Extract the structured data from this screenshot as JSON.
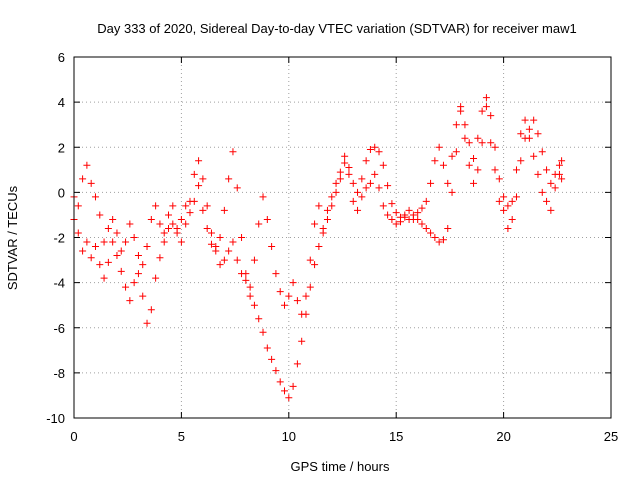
{
  "chart_data": {
    "type": "scatter",
    "title": "Day 333 of 2020, Sidereal Day-to-day VTEC variation (SDTVAR) for receiver maw1",
    "xlabel": "GPS time / hours",
    "ylabel": "SDTVAR / TECUs",
    "xlim": [
      0,
      25
    ],
    "ylim": [
      -10,
      6
    ],
    "xticks": [
      0,
      5,
      10,
      15,
      20,
      25
    ],
    "yticks": [
      -10,
      -8,
      -6,
      -4,
      -2,
      0,
      2,
      4,
      6
    ],
    "grid": true,
    "marker": "+",
    "color": "#ff0000",
    "series": [
      {
        "name": "SDTVAR",
        "tracks": [
          [
            [
              0.0,
              -0.2
            ],
            [
              0.2,
              -1.8
            ],
            [
              0.4,
              -2.6
            ],
            [
              0.6,
              -2.2
            ],
            [
              0.8,
              -2.9
            ],
            [
              1.0,
              -2.4
            ],
            [
              1.2,
              -3.2
            ],
            [
              1.4,
              -3.8
            ],
            [
              1.6,
              -3.1
            ],
            [
              1.8,
              -2.2
            ],
            [
              2.0,
              -2.8
            ],
            [
              2.2,
              -3.5
            ],
            [
              2.4,
              -4.2
            ],
            [
              2.6,
              -4.8
            ],
            [
              2.8,
              -4.0
            ],
            [
              3.0,
              -3.6
            ],
            [
              3.2,
              -4.6
            ],
            [
              3.4,
              -5.8
            ],
            [
              3.6,
              -5.2
            ],
            [
              3.8,
              -3.8
            ],
            [
              4.0,
              -2.9
            ],
            [
              4.2,
              -1.8
            ],
            [
              4.4,
              -1.0
            ],
            [
              4.6,
              -1.4
            ],
            [
              4.8,
              -1.6
            ],
            [
              5.0,
              -1.2
            ],
            [
              5.2,
              -0.6
            ],
            [
              5.4,
              -0.9
            ],
            [
              5.6,
              -0.4
            ],
            [
              5.8,
              0.3
            ],
            [
              6.0,
              -0.8
            ],
            [
              6.2,
              -1.6
            ],
            [
              6.4,
              -2.3
            ],
            [
              6.6,
              -2.6
            ],
            [
              6.8,
              -3.2
            ],
            [
              7.0,
              -3.0
            ],
            [
              7.2,
              -2.6
            ],
            [
              7.4,
              -2.2
            ],
            [
              7.6,
              -3.0
            ],
            [
              7.8,
              -3.6
            ],
            [
              8.0,
              -3.9
            ],
            [
              8.2,
              -4.6
            ],
            [
              8.4,
              -5.0
            ],
            [
              8.6,
              -5.6
            ],
            [
              8.8,
              -6.2
            ],
            [
              9.0,
              -6.9
            ],
            [
              9.2,
              -7.4
            ],
            [
              9.4,
              -7.9
            ],
            [
              9.6,
              -8.4
            ],
            [
              9.8,
              -8.8
            ],
            [
              10.0,
              -9.1
            ],
            [
              10.2,
              -8.6
            ],
            [
              10.4,
              -7.6
            ],
            [
              10.6,
              -6.6
            ],
            [
              10.8,
              -5.4
            ],
            [
              11.0,
              -4.2
            ],
            [
              11.2,
              -3.2
            ],
            [
              11.4,
              -2.4
            ],
            [
              11.6,
              -1.6
            ],
            [
              11.8,
              -0.8
            ],
            [
              12.0,
              -0.2
            ],
            [
              12.2,
              0.4
            ],
            [
              12.4,
              0.9
            ],
            [
              12.6,
              1.3
            ],
            [
              12.8,
              1.1
            ],
            [
              13.0,
              0.4
            ],
            [
              13.2,
              0.0
            ],
            [
              13.4,
              0.6
            ],
            [
              13.6,
              1.4
            ],
            [
              13.8,
              1.9
            ],
            [
              14.0,
              2.0
            ],
            [
              14.2,
              1.8
            ],
            [
              14.4,
              1.2
            ],
            [
              14.6,
              0.3
            ],
            [
              14.8,
              -0.5
            ],
            [
              15.0,
              -0.9
            ],
            [
              15.2,
              -1.1
            ],
            [
              15.4,
              -1.0
            ],
            [
              15.6,
              -1.2
            ],
            [
              15.8,
              -1.0
            ],
            [
              16.0,
              -1.2
            ],
            [
              16.2,
              -1.4
            ],
            [
              16.4,
              -1.6
            ],
            [
              16.6,
              -1.8
            ],
            [
              16.8,
              -2.0
            ],
            [
              17.0,
              -2.2
            ],
            [
              17.2,
              -2.1
            ],
            [
              17.4,
              -1.6
            ],
            [
              17.6,
              0.0
            ],
            [
              17.8,
              1.8
            ],
            [
              18.0,
              3.6
            ],
            [
              18.2,
              3.0
            ],
            [
              18.4,
              2.2
            ],
            [
              18.6,
              1.5
            ],
            [
              18.8,
              2.4
            ],
            [
              19.0,
              3.6
            ],
            [
              19.2,
              4.2
            ],
            [
              19.4,
              3.4
            ],
            [
              19.6,
              2.0
            ],
            [
              19.8,
              0.6
            ],
            [
              20.0,
              -0.2
            ],
            [
              20.2,
              -0.6
            ],
            [
              20.4,
              -1.2
            ],
            [
              20.6,
              -0.2
            ],
            [
              20.8,
              1.4
            ],
            [
              21.0,
              2.4
            ],
            [
              21.2,
              2.8
            ],
            [
              21.4,
              3.2
            ],
            [
              21.6,
              2.6
            ],
            [
              21.8,
              1.8
            ],
            [
              22.0,
              1.0
            ],
            [
              22.2,
              0.4
            ],
            [
              22.4,
              0.8
            ],
            [
              22.6,
              1.2
            ],
            [
              22.7,
              0.6
            ]
          ],
          [
            [
              0.0,
              -1.2
            ],
            [
              0.2,
              -0.6
            ],
            [
              0.4,
              0.6
            ],
            [
              0.6,
              1.2
            ],
            [
              0.8,
              0.4
            ],
            [
              1.0,
              -0.2
            ],
            [
              1.2,
              -1.0
            ],
            [
              1.4,
              -2.2
            ],
            [
              1.6,
              -1.6
            ],
            [
              1.8,
              -1.2
            ],
            [
              2.0,
              -1.8
            ],
            [
              2.2,
              -2.6
            ],
            [
              2.4,
              -2.2
            ],
            [
              2.6,
              -1.4
            ],
            [
              2.8,
              -2.0
            ],
            [
              3.0,
              -2.8
            ],
            [
              3.2,
              -3.2
            ],
            [
              3.4,
              -2.4
            ],
            [
              3.6,
              -1.2
            ],
            [
              3.8,
              -0.6
            ],
            [
              4.0,
              -1.4
            ],
            [
              4.2,
              -2.2
            ],
            [
              4.4,
              -1.6
            ],
            [
              4.6,
              -0.6
            ],
            [
              4.8,
              -1.8
            ],
            [
              5.0,
              -2.2
            ],
            [
              5.2,
              -1.4
            ],
            [
              5.4,
              -0.4
            ],
            [
              5.6,
              0.8
            ],
            [
              5.8,
              1.4
            ],
            [
              6.0,
              0.6
            ],
            [
              6.2,
              -0.6
            ],
            [
              6.4,
              -1.8
            ],
            [
              6.6,
              -2.4
            ],
            [
              6.8,
              -2.0
            ],
            [
              7.0,
              -0.8
            ],
            [
              7.2,
              0.6
            ],
            [
              7.4,
              1.8
            ],
            [
              7.6,
              0.2
            ],
            [
              7.8,
              -2.0
            ],
            [
              8.0,
              -3.6
            ],
            [
              8.2,
              -4.2
            ],
            [
              8.4,
              -3.0
            ],
            [
              8.6,
              -1.4
            ],
            [
              8.8,
              -0.2
            ],
            [
              9.0,
              -1.2
            ],
            [
              9.2,
              -2.4
            ],
            [
              9.4,
              -3.6
            ],
            [
              9.6,
              -4.4
            ],
            [
              9.8,
              -5.0
            ],
            [
              10.0,
              -4.6
            ],
            [
              10.2,
              -4.0
            ],
            [
              10.4,
              -4.8
            ],
            [
              10.6,
              -5.4
            ],
            [
              10.8,
              -4.6
            ],
            [
              11.0,
              -3.0
            ],
            [
              11.2,
              -1.4
            ],
            [
              11.4,
              -0.6
            ],
            [
              11.6,
              -1.8
            ],
            [
              11.8,
              -1.2
            ],
            [
              12.0,
              -0.6
            ],
            [
              12.2,
              0.0
            ],
            [
              12.4,
              0.6
            ],
            [
              12.6,
              1.6
            ],
            [
              12.8,
              0.8
            ],
            [
              13.0,
              -0.4
            ],
            [
              13.2,
              -0.8
            ],
            [
              13.4,
              -0.2
            ],
            [
              13.6,
              0.2
            ],
            [
              13.8,
              0.4
            ],
            [
              14.0,
              0.8
            ],
            [
              14.2,
              0.2
            ],
            [
              14.4,
              -0.6
            ],
            [
              14.6,
              -1.0
            ],
            [
              14.8,
              -1.2
            ],
            [
              15.0,
              -1.4
            ],
            [
              15.2,
              -1.3
            ],
            [
              15.4,
              -1.1
            ],
            [
              15.6,
              -0.8
            ],
            [
              15.8,
              -1.2
            ],
            [
              16.0,
              -0.9
            ],
            [
              16.2,
              -0.7
            ],
            [
              16.4,
              -0.4
            ],
            [
              16.6,
              0.4
            ],
            [
              16.8,
              1.4
            ],
            [
              17.0,
              2.0
            ],
            [
              17.2,
              1.2
            ],
            [
              17.4,
              0.4
            ],
            [
              17.6,
              1.6
            ],
            [
              17.8,
              3.0
            ],
            [
              18.0,
              3.8
            ],
            [
              18.2,
              2.4
            ],
            [
              18.4,
              1.2
            ],
            [
              18.6,
              0.4
            ],
            [
              18.8,
              1.0
            ],
            [
              19.0,
              2.2
            ],
            [
              19.2,
              3.8
            ],
            [
              19.4,
              2.2
            ],
            [
              19.6,
              1.0
            ],
            [
              19.8,
              -0.4
            ],
            [
              20.0,
              -0.8
            ],
            [
              20.2,
              -1.6
            ],
            [
              20.4,
              -0.4
            ],
            [
              20.6,
              1.0
            ],
            [
              20.8,
              2.6
            ],
            [
              21.0,
              3.2
            ],
            [
              21.2,
              2.4
            ],
            [
              21.4,
              1.6
            ],
            [
              21.6,
              0.8
            ],
            [
              21.8,
              0.0
            ],
            [
              22.0,
              -0.4
            ],
            [
              22.2,
              -0.8
            ],
            [
              22.4,
              0.2
            ],
            [
              22.6,
              0.8
            ],
            [
              22.7,
              1.4
            ]
          ]
        ]
      }
    ]
  }
}
